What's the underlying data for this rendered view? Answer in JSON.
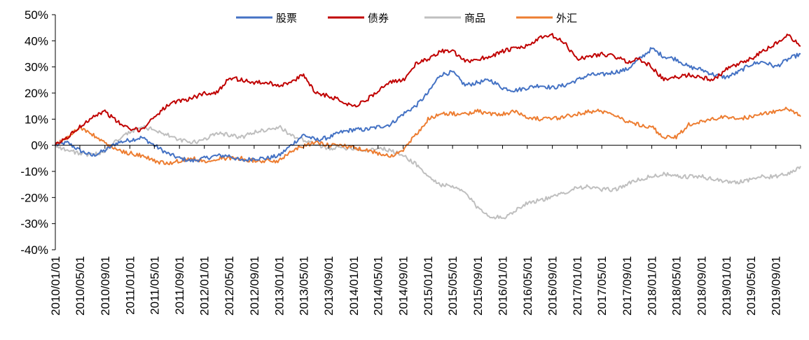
{
  "chart_data": {
    "type": "line",
    "title": "",
    "xlabel": "",
    "ylabel": "",
    "ylim": [
      -40,
      50
    ],
    "y_unit": "%",
    "y_ticks": [
      "50%",
      "40%",
      "30%",
      "20%",
      "10%",
      "0%",
      "-10%",
      "-20%",
      "-30%",
      "-40%"
    ],
    "x_ticks": [
      "2010/01/01",
      "2010/05/01",
      "2010/09/01",
      "2011/01/01",
      "2011/05/01",
      "2011/09/01",
      "2012/01/01",
      "2012/05/01",
      "2012/09/01",
      "2013/01/01",
      "2013/05/01",
      "2013/09/01",
      "2014/01/01",
      "2014/05/01",
      "2014/09/01",
      "2015/01/01",
      "2015/05/01",
      "2015/09/01",
      "2016/01/01",
      "2016/05/01",
      "2016/09/01",
      "2017/01/01",
      "2017/05/01",
      "2017/09/01",
      "2018/01/01",
      "2018/05/01",
      "2018/09/01",
      "2019/01/01",
      "2019/05/01",
      "2019/09/01"
    ],
    "grid": false,
    "legend_position": "top-center",
    "x": [
      "2010/01/01",
      "2010/03/01",
      "2010/05/01",
      "2010/07/01",
      "2010/09/01",
      "2010/11/01",
      "2011/01/01",
      "2011/03/01",
      "2011/05/01",
      "2011/07/01",
      "2011/09/01",
      "2011/11/01",
      "2012/01/01",
      "2012/03/01",
      "2012/05/01",
      "2012/07/01",
      "2012/09/01",
      "2012/11/01",
      "2013/01/01",
      "2013/03/01",
      "2013/05/01",
      "2013/07/01",
      "2013/09/01",
      "2013/11/01",
      "2014/01/01",
      "2014/03/01",
      "2014/05/01",
      "2014/07/01",
      "2014/09/01",
      "2014/11/01",
      "2015/01/01",
      "2015/03/01",
      "2015/05/01",
      "2015/07/01",
      "2015/09/01",
      "2015/11/01",
      "2016/01/01",
      "2016/03/01",
      "2016/05/01",
      "2016/07/01",
      "2016/09/01",
      "2016/11/01",
      "2017/01/01",
      "2017/03/01",
      "2017/05/01",
      "2017/07/01",
      "2017/09/01",
      "2017/11/01",
      "2018/01/01",
      "2018/03/01",
      "2018/05/01",
      "2018/07/01",
      "2018/09/01",
      "2018/11/01",
      "2019/01/01",
      "2019/03/01",
      "2019/05/01",
      "2019/07/01",
      "2019/09/01",
      "2019/11/01",
      "2019/12/31"
    ],
    "series": [
      {
        "name": "股票",
        "color": "#4472C4",
        "values": [
          0,
          1,
          -2,
          -4,
          -2,
          1,
          2,
          3,
          0,
          -3,
          -5,
          -6,
          -5,
          -4,
          -4,
          -6,
          -5,
          -5,
          -4,
          0,
          4,
          2,
          3,
          5,
          6,
          6,
          7,
          8,
          12,
          15,
          20,
          27,
          28,
          23,
          24,
          25,
          22,
          21,
          22,
          23,
          22,
          23,
          25,
          27,
          27,
          28,
          29,
          33,
          37,
          34,
          33,
          30,
          29,
          27,
          26,
          28,
          31,
          32,
          30,
          33,
          35
        ]
      },
      {
        "name": "债券",
        "color": "#C00000",
        "values": [
          0,
          3,
          7,
          11,
          13,
          9,
          6,
          6,
          11,
          15,
          17,
          18,
          20,
          20,
          26,
          25,
          24,
          24,
          23,
          24,
          27,
          20,
          19,
          17,
          15,
          17,
          21,
          24,
          25,
          31,
          33,
          36,
          36,
          32,
          33,
          34,
          36,
          37,
          38,
          41,
          42,
          39,
          33,
          34,
          35,
          34,
          32,
          33,
          30,
          25,
          26,
          27,
          26,
          25,
          29,
          31,
          33,
          36,
          39,
          42,
          38
        ]
      },
      {
        "name": "商品",
        "color": "#BFBFBF",
        "values": [
          0,
          -2,
          -3,
          -4,
          -2,
          2,
          5,
          7,
          6,
          4,
          2,
          1,
          2,
          5,
          4,
          3,
          5,
          6,
          7,
          4,
          2,
          0,
          -1,
          -1,
          -1,
          -2,
          -1,
          -2,
          -4,
          -7,
          -12,
          -15,
          -16,
          -18,
          -24,
          -27,
          -28,
          -25,
          -22,
          -21,
          -20,
          -18,
          -16,
          -16,
          -17,
          -17,
          -15,
          -13,
          -12,
          -11,
          -12,
          -12,
          -12,
          -13,
          -14,
          -14,
          -13,
          -12,
          -12,
          -11,
          -8
        ]
      },
      {
        "name": "外汇",
        "color": "#ED7D31",
        "values": [
          0,
          3,
          7,
          4,
          1,
          -2,
          -3,
          -4,
          -6,
          -7,
          -6,
          -5,
          -6,
          -5,
          -5,
          -5,
          -6,
          -6,
          -6,
          -2,
          0,
          1,
          0,
          0,
          -1,
          -2,
          -3,
          -4,
          -2,
          4,
          10,
          12,
          12,
          12,
          13,
          12,
          12,
          13,
          11,
          10,
          10,
          11,
          12,
          13,
          13,
          12,
          9,
          8,
          7,
          3,
          3,
          8,
          9,
          10,
          11,
          10,
          11,
          12,
          13,
          14,
          11
        ]
      }
    ]
  }
}
